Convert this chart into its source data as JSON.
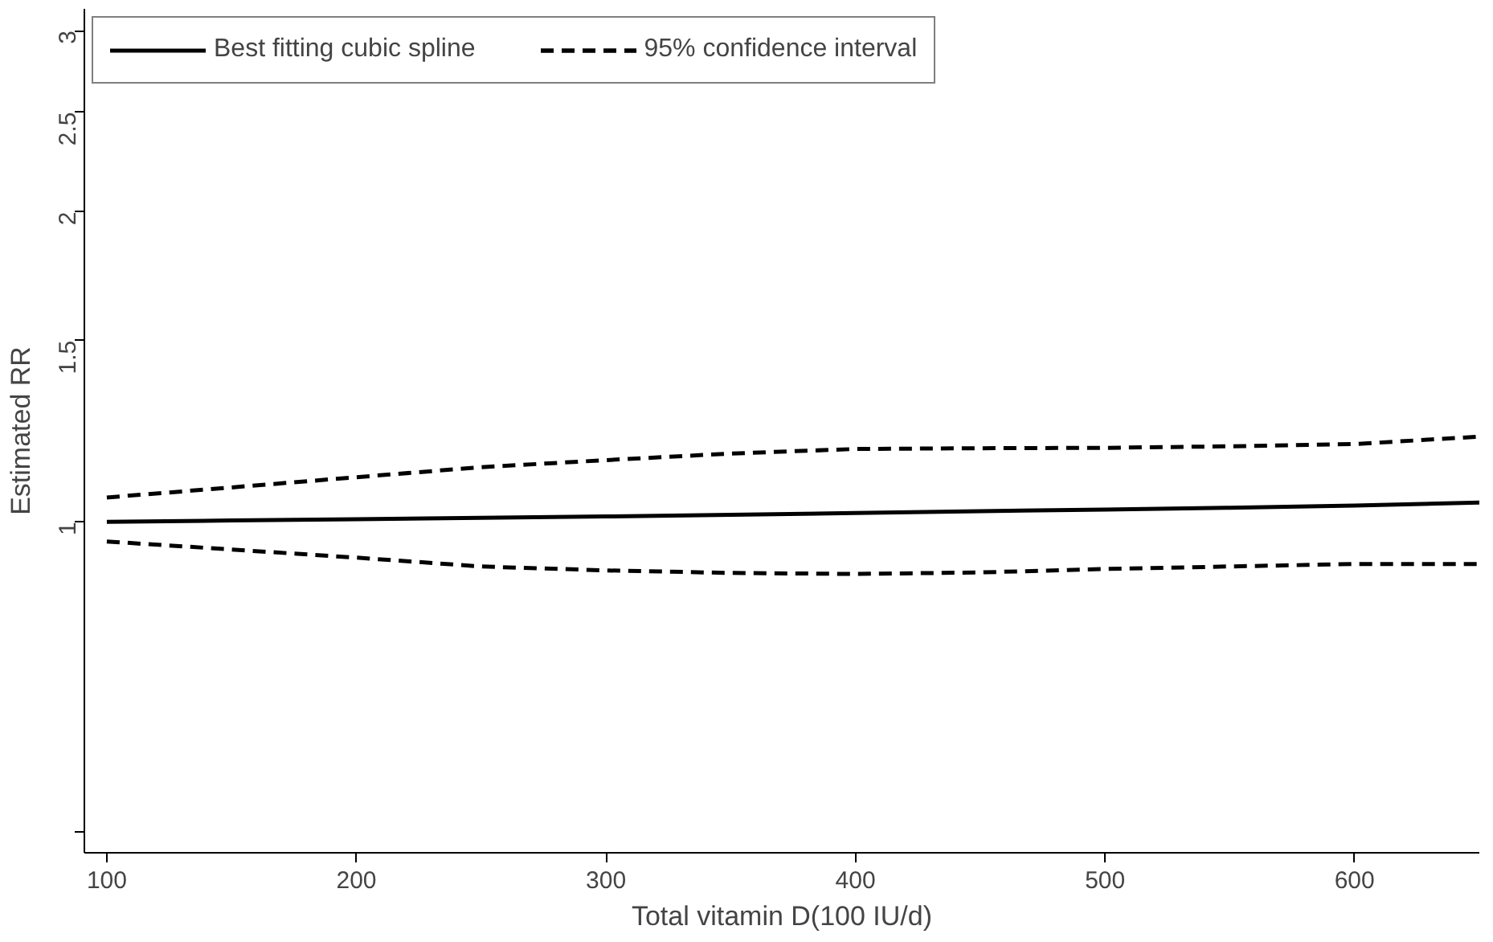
{
  "chart_data": {
    "type": "line",
    "xlabel": "Total vitamin D(100 IU/d)",
    "ylabel": "Estimated RR",
    "log": "y",
    "xlim": [
      91,
      650
    ],
    "ylim": [
      0.477,
      3.15
    ],
    "xticks": [
      100,
      200,
      300,
      400,
      500,
      600
    ],
    "yticks": [
      {
        "value": 0.5,
        "label": null
      },
      1,
      1.5,
      2,
      2.5,
      3
    ],
    "grid": false,
    "legend": "top",
    "x": [
      100,
      150,
      200,
      250,
      300,
      350,
      400,
      450,
      500,
      550,
      600,
      650
    ],
    "series": [
      {
        "name": "Best fitting cubic spline",
        "color": "#000000",
        "line_style": "solid",
        "values": [
          1.0,
          1.003,
          1.006,
          1.009,
          1.012,
          1.016,
          1.02,
          1.024,
          1.028,
          1.032,
          1.037,
          1.044
        ]
      },
      {
        "name": "95% confidence interval",
        "color": "#000000",
        "line_style": "dashed",
        "values": [
          1.056,
          1.08,
          1.105,
          1.13,
          1.148,
          1.165,
          1.177,
          1.179,
          1.18,
          1.184,
          1.19,
          1.21
        ]
      },
      {
        "color": "#000000",
        "line_style": "dashed",
        "values": [
          0.957,
          0.94,
          0.923,
          0.905,
          0.897,
          0.892,
          0.89,
          0.893,
          0.9,
          0.905,
          0.91,
          0.91
        ]
      }
    ]
  }
}
